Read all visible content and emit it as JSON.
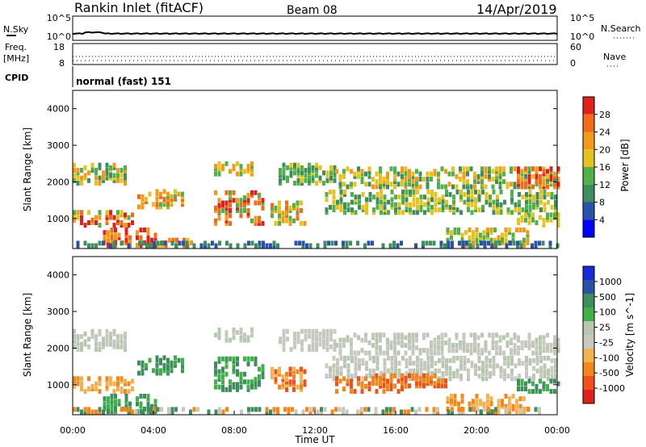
{
  "header": {
    "station": "Rankin Inlet (fitACF)",
    "beam": "Beam 08",
    "date": "14/Apr/2019"
  },
  "top_panels": {
    "nsky_label": "N.Sky",
    "nsky_ticks": [
      "10^5",
      "10^0"
    ],
    "nsearch_label": "N.Search",
    "nsearch_ticks": [
      "10^5",
      "10^0"
    ],
    "freq_label": "Freq.",
    "freq_unit": "[MHz]",
    "freq_ticks": [
      "18",
      "8"
    ],
    "nave_label": "Nave",
    "nave_ticks": [
      "60",
      "0"
    ],
    "cpid_label": "CPID",
    "cpid_value": "normal (fast) 151"
  },
  "colors": {
    "power": [
      "#0000ff",
      "#2a52a8",
      "#3f8c5f",
      "#52b04a",
      "#e6c21f",
      "#f29a1a",
      "#f26a1a",
      "#e0201a"
    ],
    "velocity": [
      "#e0201a",
      "#f0501a",
      "#f5861c",
      "#f5b050",
      "#c8c8c0",
      "#b8c8b0",
      "#3fb04a",
      "#3f8c5f",
      "#2a52a8",
      "#1a2ad8"
    ]
  },
  "chart_data": [
    {
      "type": "heatmap",
      "name": "power",
      "ylabel": "Slant Range [km]",
      "yticks": [
        "4000",
        "3000",
        "2000",
        "1000"
      ],
      "ylim": [
        180,
        4500
      ],
      "xlim": [
        0,
        24
      ],
      "colorbar_label": "Power [dB]",
      "colorbar_ticks": [
        "28",
        "24",
        "20",
        "16",
        "12",
        "8",
        "4"
      ],
      "colorbar_range": [
        0,
        32
      ]
    },
    {
      "type": "heatmap",
      "name": "velocity",
      "ylabel": "Slant Range [km]",
      "yticks": [
        "4000",
        "3000",
        "2000",
        "1000"
      ],
      "ylim": [
        180,
        4500
      ],
      "xlim": [
        0,
        24
      ],
      "xticks": [
        "00:00",
        "04:00",
        "08:00",
        "12:00",
        "16:00",
        "20:00",
        "00:00"
      ],
      "xlabel": "Time UT",
      "colorbar_label": "Velocity [m s^-1]",
      "colorbar_ticks": [
        "1000",
        "500",
        "100",
        "25",
        "-25",
        "-100",
        "-500",
        "-1000"
      ]
    }
  ]
}
